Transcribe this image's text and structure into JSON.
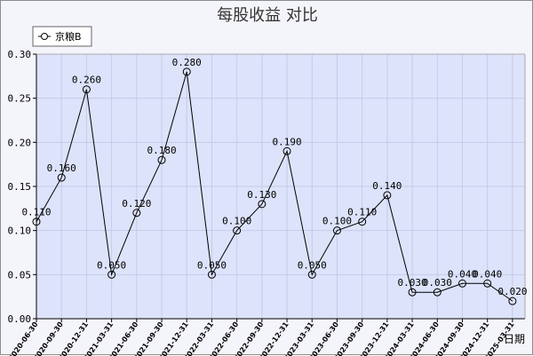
{
  "chart_data": {
    "type": "line",
    "title": "每股收益 对比",
    "xlabel": "日期",
    "ylabel": "",
    "ylim": [
      0,
      0.3
    ],
    "yticks": [
      "0.00",
      "0.05",
      "0.10",
      "0.15",
      "0.20",
      "0.25",
      "0.30"
    ],
    "grid": true,
    "legend_position": "top-left",
    "categories": [
      "2020-06-30",
      "2020-09-30",
      "2020-12-31",
      "2021-03-31",
      "2021-06-30",
      "2021-09-30",
      "2021-12-31",
      "2022-03-31",
      "2022-06-30",
      "2022-09-30",
      "2022-12-31",
      "2023-03-31",
      "2023-06-30",
      "2023-09-30",
      "2023-12-31",
      "2024-03-31",
      "2024-06-30",
      "2024-09-30",
      "2024-12-31",
      "2025-03-31"
    ],
    "series": [
      {
        "name": "京粮B",
        "values": [
          0.11,
          0.16,
          0.26,
          0.05,
          0.12,
          0.18,
          0.28,
          0.05,
          0.1,
          0.13,
          0.19,
          0.05,
          0.1,
          0.11,
          0.14,
          0.03,
          0.03,
          0.04,
          0.04,
          0.02
        ],
        "labels": [
          "0.110",
          "0.160",
          "0.260",
          "0.050",
          "0.120",
          "0.180",
          "0.280",
          "0.050",
          "0.100",
          "0.130",
          "0.190",
          "0.050",
          "0.100",
          "0.110",
          "0.140",
          "0.030",
          "0.030",
          "0.040",
          "0.040",
          "0.020"
        ]
      }
    ],
    "colors": {
      "plot_background": "#dde3fa",
      "grid": "#c6cbe8",
      "line": "#000000",
      "frame": "#f4f4fb"
    }
  }
}
